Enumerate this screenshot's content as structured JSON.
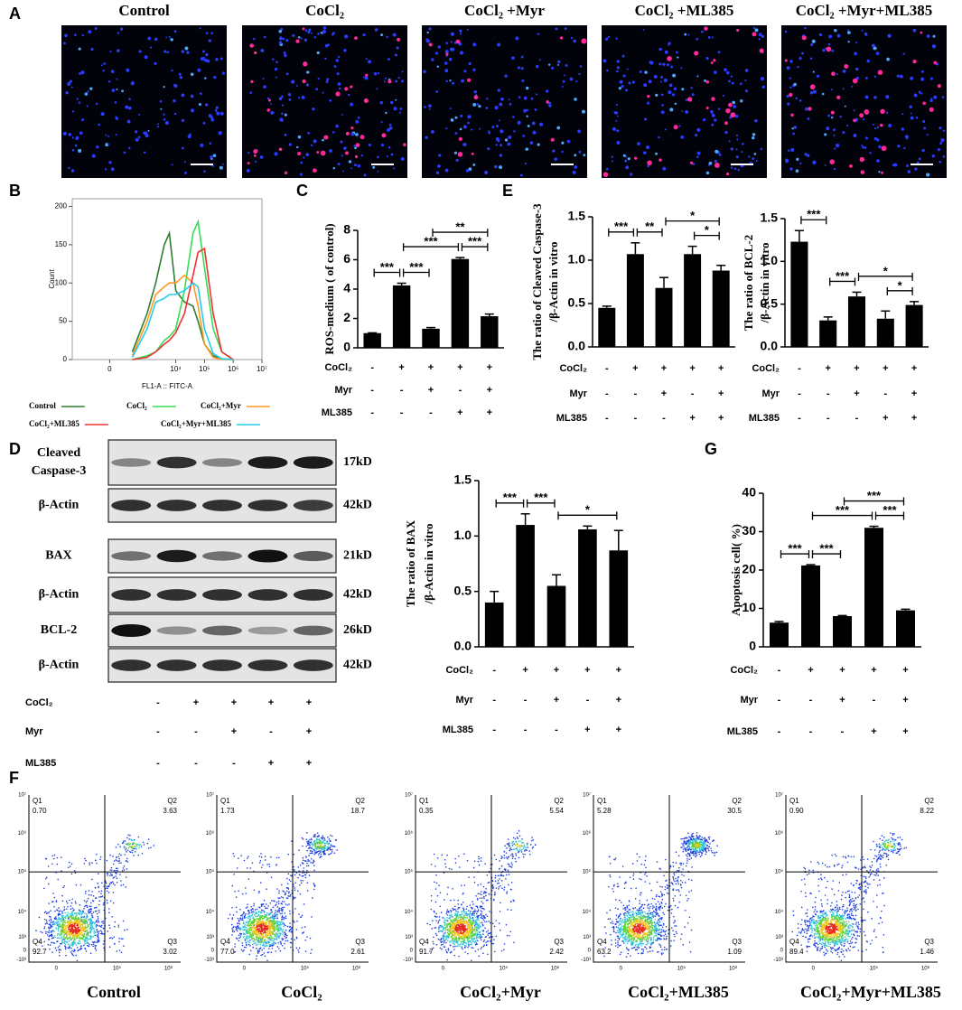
{
  "panel_labels": [
    "A",
    "B",
    "C",
    "D",
    "E",
    "F",
    "G"
  ],
  "panel_a": {
    "titles": [
      "Control",
      "CoCl₂",
      "CoCl₂ +Myr",
      "CoCl₂ +ML385",
      "CoCl₂ +Myr+ML385"
    ]
  },
  "treatments": [
    {
      "name": "CoCl₂",
      "signs": [
        "-",
        "+",
        "+",
        "+",
        "+"
      ]
    },
    {
      "name": "Myr",
      "signs": [
        "-",
        "-",
        "+",
        "-",
        "+"
      ]
    },
    {
      "name": "ML385",
      "signs": [
        "-",
        "-",
        "-",
        "+",
        "+"
      ]
    }
  ],
  "chart_data": [
    {
      "type": "line",
      "x_label": "FL1-A :: FITC-A",
      "y_label": "Count",
      "xscale": "asinh",
      "x": [
        300,
        1000,
        2000,
        4000,
        6000,
        10000,
        20000,
        40000,
        60000,
        100000,
        200000,
        400000,
        1000000
      ],
      "xlim": [
        -1000,
        10000000
      ],
      "xticks": [
        {
          "value": 0,
          "label": "0"
        },
        {
          "value": 10000,
          "label": "10⁴"
        },
        {
          "value": 100000,
          "label": "10⁵"
        },
        {
          "value": 1000000,
          "label": "10⁶"
        },
        {
          "value": 10000000,
          "label": "10⁷"
        }
      ],
      "ylim": [
        0,
        210
      ],
      "yticks": [
        0,
        50,
        100,
        150,
        200
      ],
      "series": [
        {
          "name": "Control",
          "color": "#2e7d32",
          "values": [
            10,
            60,
            100,
            150,
            165,
            90,
            75,
            70,
            50,
            20,
            5,
            1,
            0
          ]
        },
        {
          "name": "CoCl₂",
          "color": "#33dd55",
          "values": [
            0,
            5,
            10,
            25,
            30,
            40,
            90,
            165,
            180,
            120,
            40,
            10,
            0
          ]
        },
        {
          "name": "CoCl₂+Myr",
          "color": "#ff9922",
          "values": [
            5,
            50,
            85,
            95,
            100,
            100,
            110,
            100,
            70,
            20,
            3,
            0,
            0
          ]
        },
        {
          "name": "CoCl₂+ML385",
          "color": "#ee3333",
          "values": [
            0,
            3,
            10,
            20,
            25,
            35,
            60,
            110,
            140,
            145,
            60,
            10,
            0
          ]
        },
        {
          "name": "CoCl₂+Myr+ML385",
          "color": "#22ccee",
          "values": [
            3,
            40,
            75,
            80,
            85,
            85,
            90,
            100,
            95,
            40,
            8,
            1,
            0
          ]
        }
      ]
    },
    {
      "type": "bar",
      "y_label": [
        "ROS-medium ( of control)"
      ],
      "color": "#000000",
      "values": [
        1,
        4.25,
        1.3,
        6.05,
        2.15
      ],
      "errors": [
        0.02,
        0.15,
        0.08,
        0.1,
        0.15
      ],
      "ylim": [
        0,
        8
      ],
      "yticks": [
        0,
        2,
        4,
        6,
        8
      ],
      "brackets": [
        {
          "between": [
            0,
            1
          ],
          "label": "***"
        },
        {
          "between": [
            1,
            2
          ],
          "label": "***"
        },
        {
          "between": [
            3,
            4
          ],
          "label": "***"
        },
        {
          "between": [
            1,
            3
          ],
          "label": "***"
        },
        {
          "between": [
            2,
            4
          ],
          "label": "**"
        }
      ]
    },
    {
      "type": "bar",
      "y_label": [
        "The ratio of Cleaved Caspase-3",
        "/β-Actin in vitro"
      ],
      "color": "#000000",
      "values": [
        0.45,
        1.07,
        0.68,
        1.07,
        0.88
      ],
      "errors": [
        0.02,
        0.13,
        0.12,
        0.09,
        0.06
      ],
      "ylim": [
        0,
        1.5
      ],
      "yticks": [
        {
          "value": 0,
          "label": "0.0"
        },
        0.5,
        {
          "value": 1,
          "label": "1.0"
        },
        1.5
      ],
      "brackets": [
        {
          "between": [
            0,
            1
          ],
          "label": "***"
        },
        {
          "between": [
            1,
            2
          ],
          "label": "**"
        },
        {
          "between": [
            3,
            4
          ],
          "label": "*"
        },
        {
          "between": [
            2,
            4
          ],
          "label": "*"
        }
      ]
    },
    {
      "type": "bar",
      "y_label": [
        "The ratio of BCL-2",
        "/β-Actin in vitro"
      ],
      "color": "#000000",
      "values": [
        1.23,
        0.31,
        0.59,
        0.33,
        0.49
      ],
      "errors": [
        0.13,
        0.04,
        0.05,
        0.09,
        0.04
      ],
      "ylim": [
        0,
        1.5
      ],
      "yticks": [
        {
          "value": 0,
          "label": "0.0"
        },
        0.5,
        {
          "value": 1,
          "label": "1.0"
        },
        1.5
      ],
      "brackets": [
        {
          "between": [
            0,
            1
          ],
          "label": "***"
        },
        {
          "between": [
            1,
            2
          ],
          "label": "***"
        },
        {
          "between": [
            3,
            4
          ],
          "label": "*"
        },
        {
          "between": [
            2,
            4
          ],
          "label": "*"
        }
      ]
    },
    {
      "type": "bar",
      "y_label": [
        "The ratio of BAX",
        "/β-Actin in vitro"
      ],
      "color": "#000000",
      "values": [
        0.4,
        1.1,
        0.55,
        1.06,
        0.87
      ],
      "errors": [
        0.1,
        0.1,
        0.1,
        0.03,
        0.18
      ],
      "ylim": [
        0,
        1.5
      ],
      "yticks": [
        {
          "value": 0,
          "label": "0.0"
        },
        0.5,
        {
          "value": 1,
          "label": "1.0"
        },
        1.5
      ],
      "brackets": [
        {
          "between": [
            0,
            1
          ],
          "label": "***"
        },
        {
          "between": [
            1,
            2
          ],
          "label": "***"
        },
        {
          "between": [
            2,
            4
          ],
          "label": "*"
        }
      ]
    },
    {
      "type": "bar",
      "y_label": [
        "Apoptosis cell( %)"
      ],
      "color": "#000000",
      "values": [
        6.3,
        21.2,
        8.0,
        31.0,
        9.5
      ],
      "errors": [
        0.3,
        0.2,
        0.15,
        0.4,
        0.3
      ],
      "ylim": [
        0,
        40
      ],
      "yticks": [
        0,
        10,
        20,
        30,
        40
      ],
      "brackets": [
        {
          "between": [
            0,
            1
          ],
          "label": "***"
        },
        {
          "between": [
            1,
            2
          ],
          "label": "***"
        },
        {
          "between": [
            3,
            4
          ],
          "label": "***"
        },
        {
          "between": [
            1,
            3
          ],
          "label": "***"
        },
        {
          "between": [
            2,
            4
          ],
          "label": "***"
        }
      ]
    }
  ],
  "blot": {
    "rows": [
      {
        "label": [
          "Cleaved",
          "Caspase-3"
        ],
        "kd": "17kD"
      },
      {
        "label": [
          "β-Actin"
        ],
        "kd": "42kD"
      },
      {
        "label": [
          "BAX"
        ],
        "kd": "21kD"
      },
      {
        "label": [
          "β-Actin"
        ],
        "kd": "42kD"
      },
      {
        "label": [
          "BCL-2"
        ],
        "kd": "26kD"
      },
      {
        "label": [
          "β-Actin"
        ],
        "kd": "42kD"
      }
    ]
  },
  "panel_f": {
    "x_axis_labels": [
      "0",
      "10⁵",
      "10⁸"
    ],
    "y_axis_labels": [
      "10⁷",
      "10⁶",
      "10⁵",
      "10⁴",
      "10³",
      "0",
      "-10³"
    ],
    "plots": [
      {
        "title": "Control",
        "quadrants": [
          {
            "name": "Q1",
            "value": "0.70"
          },
          {
            "name": "Q2",
            "value": "3.63"
          },
          {
            "name": "Q3",
            "value": "3.02"
          },
          {
            "name": "Q4",
            "value": "92.7"
          }
        ]
      },
      {
        "title": "CoCl₂",
        "quadrants": [
          {
            "name": "Q1",
            "value": "1.73"
          },
          {
            "name": "Q2",
            "value": "18.7"
          },
          {
            "name": "Q3",
            "value": "2.61"
          },
          {
            "name": "Q4",
            "value": "77.0"
          }
        ]
      },
      {
        "title": "CoCl₂+Myr",
        "quadrants": [
          {
            "name": "Q1",
            "value": "0.35"
          },
          {
            "name": "Q2",
            "value": "5.54"
          },
          {
            "name": "Q3",
            "value": "2.42"
          },
          {
            "name": "Q4",
            "value": "91.7"
          }
        ]
      },
      {
        "title": "CoCl₂+ML385",
        "quadrants": [
          {
            "name": "Q1",
            "value": "5.28"
          },
          {
            "name": "Q2",
            "value": "30.5"
          },
          {
            "name": "Q3",
            "value": "1.09"
          },
          {
            "name": "Q4",
            "value": "63.2"
          }
        ]
      },
      {
        "title": "CoCl₂+Myr+ML385",
        "quadrants": [
          {
            "name": "Q1",
            "value": "0.90"
          },
          {
            "name": "Q2",
            "value": "8.22"
          },
          {
            "name": "Q3",
            "value": "1.46"
          },
          {
            "name": "Q4",
            "value": "89.4"
          }
        ]
      }
    ]
  }
}
